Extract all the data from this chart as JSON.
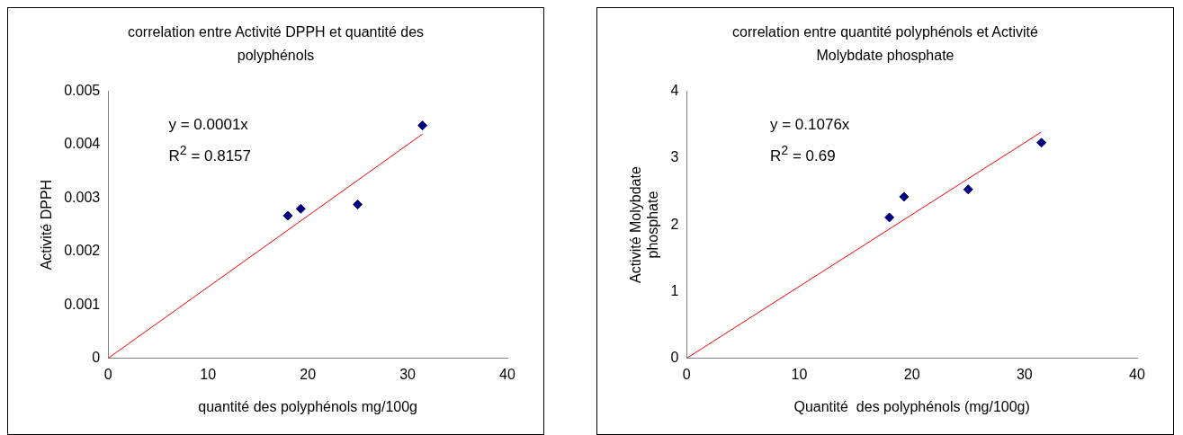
{
  "chart_data": [
    {
      "type": "scatter",
      "title": "correlation entre Activité DPPH et quantité des polyphénols",
      "xlabel": "quantité des polyphénols mg/100g",
      "ylabel": "Activité DPPH",
      "xlim": [
        0,
        40
      ],
      "xticks": [
        0,
        10,
        20,
        30,
        40
      ],
      "ylim": [
        0,
        0.005
      ],
      "yticks": [
        0,
        0.001,
        0.002,
        0.003,
        0.004,
        0.005
      ],
      "grid": false,
      "legend": false,
      "series": [
        {
          "color": "#000080",
          "marker": "diamond",
          "x": [
            18.0,
            19.3,
            25.0,
            31.5
          ],
          "values": [
            0.00267,
            0.0028,
            0.00288,
            0.00436
          ]
        },
        {
          "type": "line",
          "color": "#ff0000",
          "marker": "none",
          "x": [
            0,
            31.5
          ],
          "values": [
            0,
            0.0042
          ]
        }
      ],
      "annotations": [
        "y = 0.0001x",
        "R$^{2}$ = 0.8157"
      ]
    },
    {
      "type": "scatter",
      "title": "correlation entre quantité polyphénols et Activité Molybdate phosphate",
      "xlabel": "Quantité  des polyphénols (mg/100g)",
      "ylabel": "Activité Molybdate phosphate",
      "xlim": [
        0,
        40
      ],
      "xticks": [
        0,
        10,
        20,
        30,
        40
      ],
      "ylim": [
        0,
        4
      ],
      "yticks": [
        0,
        1,
        2,
        3,
        4
      ],
      "grid": false,
      "legend": false,
      "series": [
        {
          "color": "#000080",
          "marker": "diamond",
          "x": [
            18.0,
            19.3,
            25.0,
            31.5
          ],
          "values": [
            2.11,
            2.42,
            2.53,
            3.23
          ]
        },
        {
          "type": "line",
          "color": "#ff0000",
          "marker": "none",
          "x": [
            0,
            31.5
          ],
          "values": [
            0,
            3.39
          ]
        }
      ],
      "annotations": [
        "y = 0.1076x",
        "R$^{2}$ = 0.69"
      ]
    }
  ]
}
